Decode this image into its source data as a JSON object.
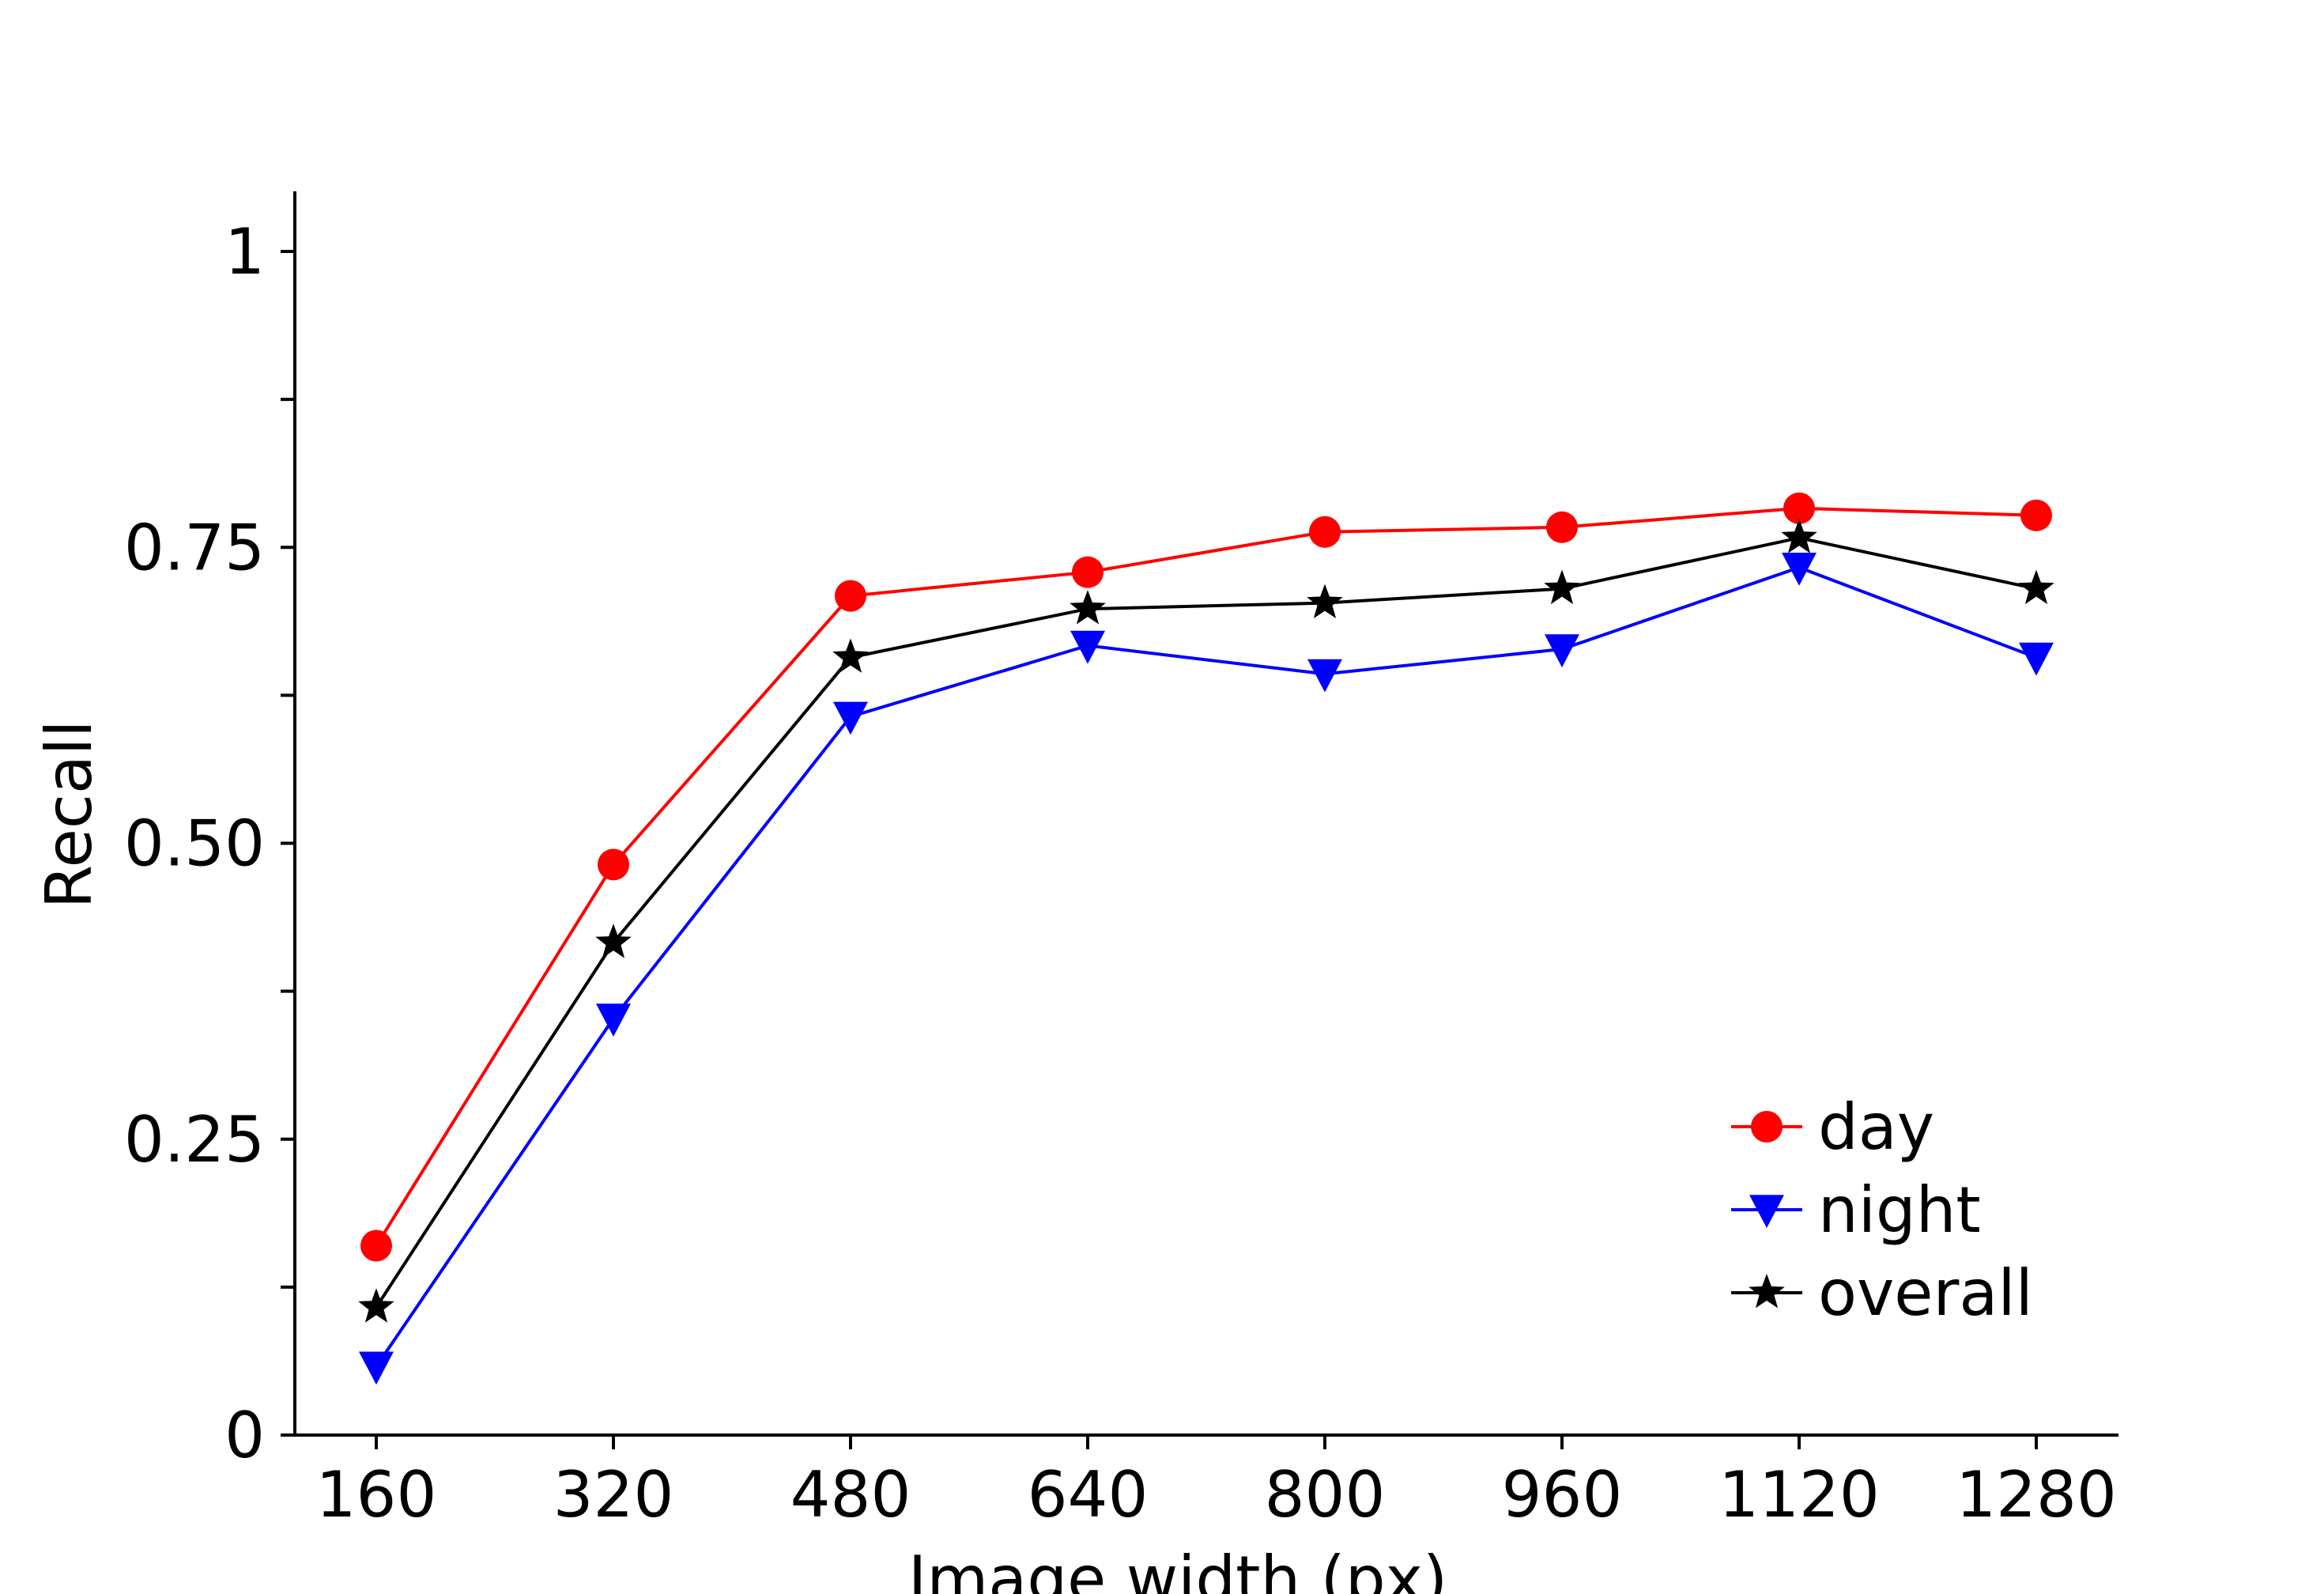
{
  "chart_data": {
    "type": "line",
    "title": "",
    "xlabel": "Image width (px)",
    "ylabel": "Recall",
    "categories": [
      "160",
      "320",
      "480",
      "640",
      "800",
      "960",
      "1120",
      "1280"
    ],
    "ylim": [
      0,
      1.05
    ],
    "y_ticks": [
      {
        "value": 0,
        "label": "0"
      },
      {
        "value": 0.125,
        "label": ""
      },
      {
        "value": 0.25,
        "label": "0.25"
      },
      {
        "value": 0.375,
        "label": ""
      },
      {
        "value": 0.5,
        "label": "0.50"
      },
      {
        "value": 0.625,
        "label": ""
      },
      {
        "value": 0.75,
        "label": "0.75"
      },
      {
        "value": 0.875,
        "label": ""
      },
      {
        "value": 1,
        "label": "1"
      }
    ],
    "grid": false,
    "legend_position": "bottom-right",
    "series": [
      {
        "name": "day",
        "color": "#ff0000",
        "marker": "circle",
        "values": [
          0.16,
          0.482,
          0.709,
          0.729,
          0.763,
          0.767,
          0.783,
          0.777
        ]
      },
      {
        "name": "night",
        "color": "#0000ff",
        "marker": "triangle-down",
        "values": [
          0.058,
          0.352,
          0.607,
          0.667,
          0.643,
          0.664,
          0.733,
          0.657
        ]
      },
      {
        "name": "overall",
        "color": "#000000",
        "marker": "star",
        "values": [
          0.108,
          0.416,
          0.657,
          0.698,
          0.703,
          0.715,
          0.758,
          0.715
        ]
      }
    ]
  }
}
